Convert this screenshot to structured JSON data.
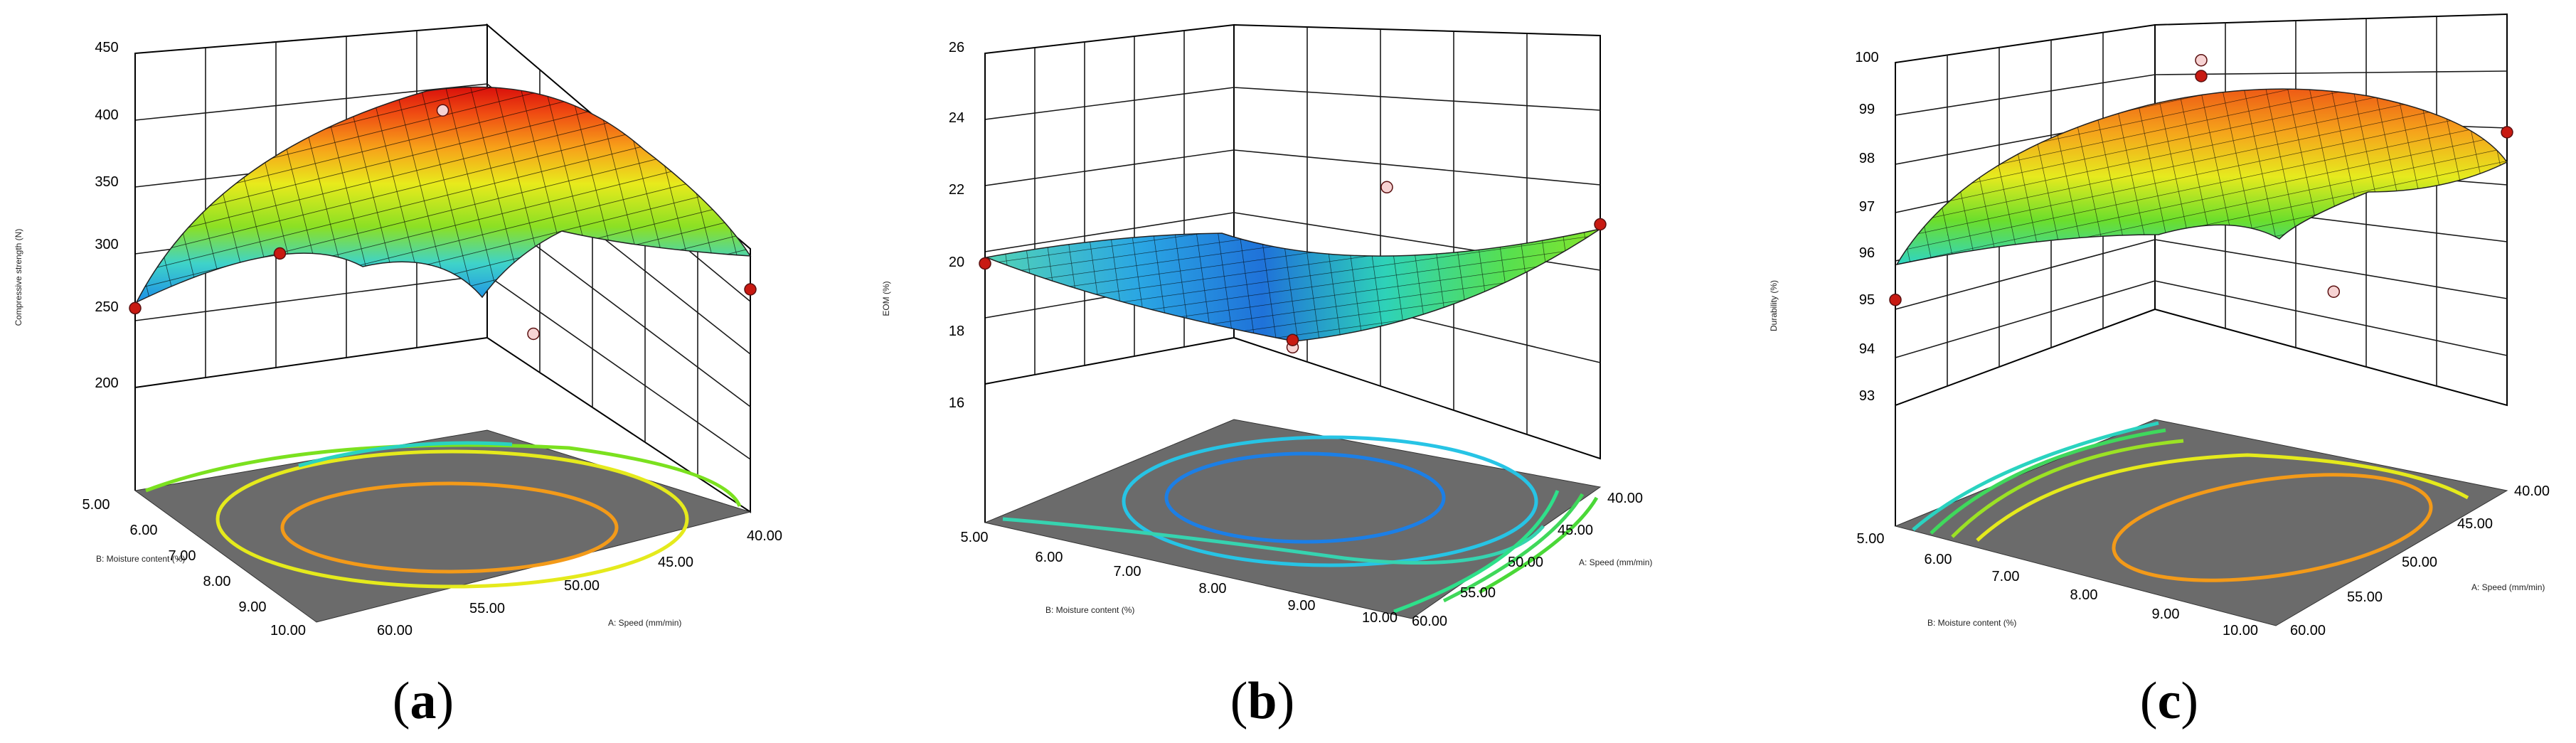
{
  "chart_data": [
    {
      "type": "surface",
      "panel_label": "a",
      "zlabel": "Compressive strength (N)",
      "xlabel": "A: Speed (mm/min)",
      "ylabel": "B: Moisture content (%)",
      "xticks": [
        "40.00",
        "45.00",
        "50.00",
        "55.00",
        "60.00"
      ],
      "yticks": [
        "5.00",
        "6.00",
        "7.00",
        "8.00",
        "9.00",
        "10.00"
      ],
      "zticks": [
        "200",
        "250",
        "300",
        "350",
        "400",
        "450"
      ],
      "xlim": [
        40,
        60
      ],
      "ylim": [
        5,
        10
      ],
      "zlim": [
        200,
        450
      ],
      "design_points": [
        {
          "x": 60,
          "y": 5,
          "z": 262
        },
        {
          "x": 50,
          "y": 7.5,
          "z": 418
        },
        {
          "x": 55,
          "y": 6,
          "z": 302
        },
        {
          "x": 50,
          "y": 10,
          "z": 300
        },
        {
          "x": 40,
          "y": 10,
          "z": 292
        }
      ]
    },
    {
      "type": "surface",
      "panel_label": "b",
      "zlabel": "EOM (%)",
      "xlabel": "A: Speed (mm/min)",
      "ylabel": "B: Moisture content (%)",
      "xticks": [
        "40.00",
        "45.00",
        "50.00",
        "55.00",
        "60.00"
      ],
      "yticks": [
        "5.00",
        "6.00",
        "7.00",
        "8.00",
        "9.00",
        "10.00"
      ],
      "zticks": [
        "16",
        "18",
        "20",
        "22",
        "24",
        "26"
      ],
      "xlim": [
        40,
        60
      ],
      "ylim": [
        5,
        10
      ],
      "zlim": [
        16,
        26
      ],
      "design_points": [
        {
          "x": 60,
          "y": 5,
          "z": 20.4
        },
        {
          "x": 50,
          "y": 7.5,
          "z": 17.6
        },
        {
          "x": 50,
          "y": 7.5,
          "z": 17.8
        },
        {
          "x": 40,
          "y": 7.5,
          "z": 20.2
        },
        {
          "x": 40,
          "y": 10,
          "z": 20.5
        }
      ]
    },
    {
      "type": "surface",
      "panel_label": "c",
      "zlabel": "Durability (%)",
      "xlabel": "A: Speed (mm/min)",
      "ylabel": "B: Moisture content (%)",
      "xticks": [
        "40.00",
        "45.00",
        "50.00",
        "55.00",
        "60.00"
      ],
      "yticks": [
        "5.00",
        "6.00",
        "7.00",
        "8.00",
        "9.00",
        "10.00"
      ],
      "zticks": [
        "93",
        "94",
        "95",
        "96",
        "97",
        "98",
        "99",
        "100"
      ],
      "xlim": [
        40,
        60
      ],
      "ylim": [
        5,
        10
      ],
      "zlim": [
        93,
        100
      ],
      "design_points": [
        {
          "x": 60,
          "y": 5,
          "z": 95.4
        },
        {
          "x": 50,
          "y": 7.5,
          "z": 99.6
        },
        {
          "x": 50,
          "y": 7.5,
          "z": 99.3
        },
        {
          "x": 55,
          "y": 10,
          "z": 96.8
        },
        {
          "x": 40,
          "y": 10,
          "z": 97.9
        }
      ]
    }
  ]
}
